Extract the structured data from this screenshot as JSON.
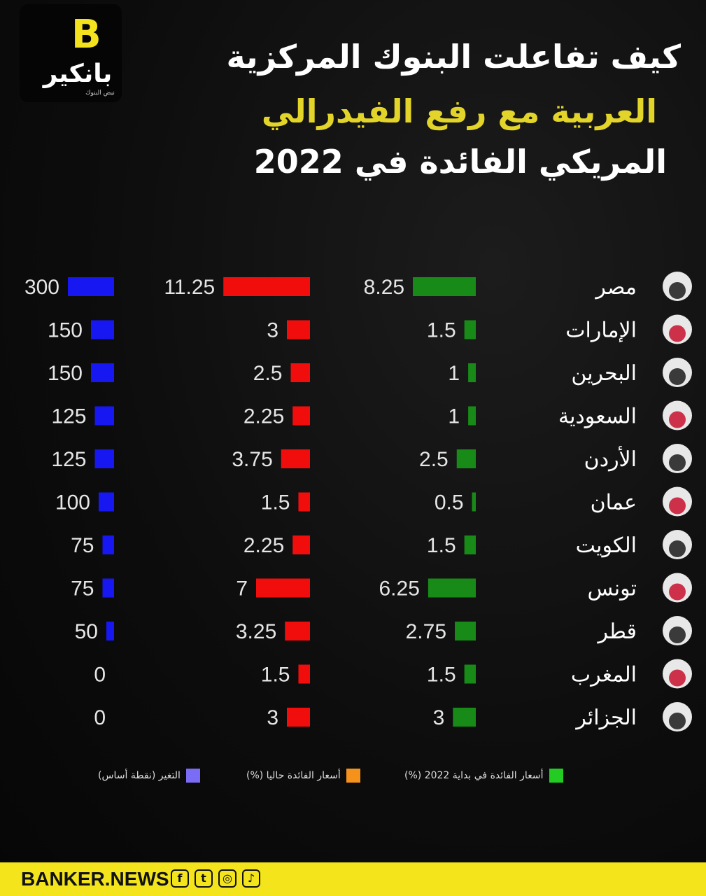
{
  "logo": {
    "mark": "B",
    "text": "بانكير",
    "sub": "نبض البنوك"
  },
  "title": {
    "line1": "كيف تفاعلت البنوك المركزية",
    "line2": "العربية مع رفع الفيدرالي",
    "line3": "المريكي الفائدة في 2022"
  },
  "colors": {
    "start": "#188a18",
    "current": "#f20d0d",
    "change": "#1717f2",
    "accent": "#f3e41b"
  },
  "chart_data": {
    "type": "bar",
    "categories": [
      "مصر",
      "الإمارات",
      "البحرين",
      "السعودية",
      "الأردن",
      "عمان",
      "الكويت",
      "تونس",
      "قطر",
      "المغرب",
      "الجزائر"
    ],
    "series": [
      {
        "name": "أسعار الفائدة في بداية 2022 (%)",
        "values": [
          8.25,
          1.5,
          1,
          1,
          2.5,
          0.5,
          1.5,
          6.25,
          2.75,
          1.5,
          3
        ]
      },
      {
        "name": "أسعار الفائدة حاليا (%)",
        "values": [
          11.25,
          3,
          2.5,
          2.25,
          3.75,
          1.5,
          2.25,
          7,
          3.25,
          1.5,
          3
        ]
      },
      {
        "name": "التغير (نقطة أساس)",
        "values": [
          300,
          150,
          150,
          125,
          125,
          100,
          75,
          75,
          50,
          0,
          0
        ]
      }
    ],
    "legend": "bottom"
  },
  "legend": {
    "start": "أسعار الفائدة في بداية 2022 (%)",
    "current": "أسعار الفائدة حاليا (%)",
    "change": "التغير (نقطة أساس)",
    "start_color": "#22cc22",
    "current_color": "#f5921b",
    "change_color": "#7a6cf5"
  },
  "footer": {
    "brand": "BANKER.NEWS",
    "icons": [
      "facebook-icon",
      "twitter-icon",
      "instagram-icon",
      "tiktok-icon"
    ]
  }
}
